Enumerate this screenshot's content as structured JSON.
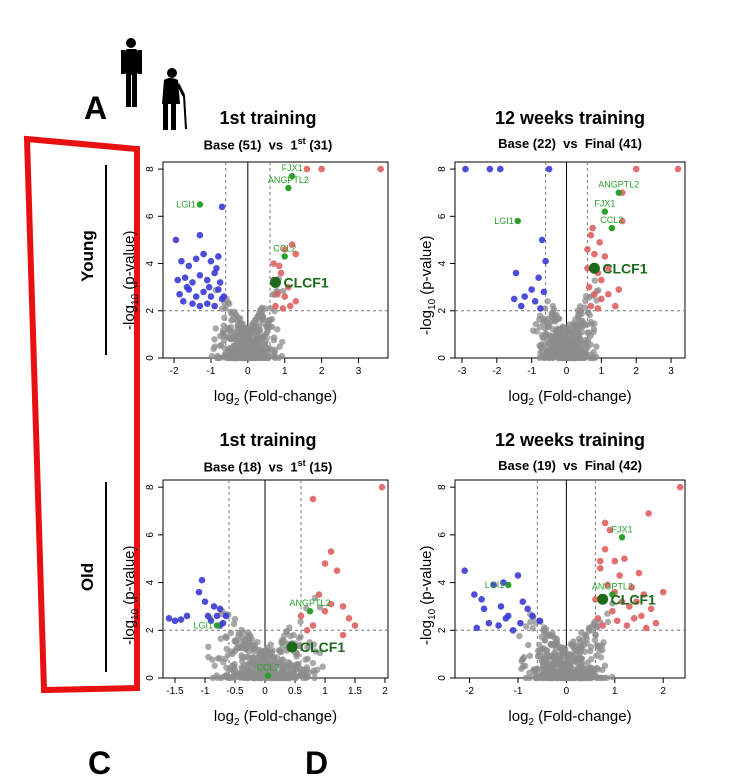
{
  "figure": {
    "panel_label": "A",
    "groups": {
      "young": "Young",
      "old": "Old"
    },
    "bottom_letters": [
      "C",
      "D"
    ],
    "icons": {
      "young": "standing-person-icon",
      "old": "elderly-person-with-cane-icon"
    },
    "colors": {
      "down": "#3a3ad6",
      "up": "#e06060",
      "ns": "#8c8c8c",
      "highlight": "#2aa02a",
      "clcf1": "#1a6a1a",
      "frame": "#e81010"
    }
  },
  "chart_data": [
    {
      "id": "young-1st",
      "type": "scatter",
      "title": "1st training",
      "subtitle": {
        "left": "Base (51)",
        "vs": "vs",
        "right_pre": "1",
        "right_sup": "st",
        "right_post": " (31)"
      },
      "xlabel_pre": "log",
      "xlabel_sub": "2",
      "xlabel_post": " (Fold-change)",
      "ylabel_pre": "-log",
      "ylabel_sub": "10",
      "ylabel_post": " (p-value)",
      "xlim": [
        -2.3,
        3.8
      ],
      "ylim": [
        0,
        8.3
      ],
      "xticks": [
        -2,
        -1,
        0,
        1,
        2,
        3
      ],
      "yticks": [
        0,
        2,
        4,
        6,
        8
      ],
      "vlines": [
        -0.6,
        0.6
      ],
      "hline": 2,
      "down_points": [
        [
          -1.95,
          5.0
        ],
        [
          -1.3,
          5.2
        ],
        [
          -0.7,
          6.4
        ],
        [
          -1.8,
          4.1
        ],
        [
          -1.6,
          3.9
        ],
        [
          -1.4,
          4.2
        ],
        [
          -1.2,
          4.4
        ],
        [
          -1.0,
          4.1
        ],
        [
          -0.8,
          4.3
        ],
        [
          -1.9,
          3.3
        ],
        [
          -1.7,
          3.4
        ],
        [
          -1.5,
          3.2
        ],
        [
          -1.3,
          3.5
        ],
        [
          -1.1,
          3.3
        ],
        [
          -0.9,
          3.6
        ],
        [
          -0.75,
          3.2
        ],
        [
          -1.85,
          2.7
        ],
        [
          -1.6,
          2.9
        ],
        [
          -1.4,
          2.6
        ],
        [
          -1.2,
          2.8
        ],
        [
          -1.0,
          2.6
        ],
        [
          -0.8,
          2.9
        ],
        [
          -0.7,
          2.5
        ],
        [
          -1.75,
          2.4
        ],
        [
          -1.5,
          2.3
        ],
        [
          -1.3,
          2.2
        ],
        [
          -1.1,
          2.3
        ],
        [
          -0.9,
          2.2
        ],
        [
          -0.65,
          2.6
        ],
        [
          -1.65,
          3.0
        ],
        [
          -1.05,
          3.0
        ],
        [
          -0.85,
          3.8
        ]
      ],
      "up_points": [
        [
          0.7,
          3.3
        ],
        [
          0.9,
          3.6
        ],
        [
          1.2,
          4.8
        ],
        [
          0.8,
          2.7
        ],
        [
          1.0,
          2.6
        ],
        [
          1.1,
          3.0
        ],
        [
          1.3,
          2.4
        ],
        [
          0.75,
          2.2
        ],
        [
          0.95,
          2.1
        ],
        [
          1.15,
          2.2
        ],
        [
          0.85,
          3.9
        ],
        [
          1.0,
          4.6
        ],
        [
          1.6,
          8.0
        ],
        [
          2.0,
          8.0
        ],
        [
          3.6,
          8.0
        ],
        [
          1.3,
          4.4
        ],
        [
          0.7,
          4.0
        ]
      ],
      "labels": [
        {
          "name": "FJX1",
          "x": 1.2,
          "y": 7.7,
          "big": false
        },
        {
          "name": "ANGPTL2",
          "x": 1.1,
          "y": 7.2,
          "big": false
        },
        {
          "name": "LGI1",
          "x": -1.3,
          "y": 6.5,
          "big": false
        },
        {
          "name": "CCL2",
          "x": 1.0,
          "y": 4.3,
          "big": false
        },
        {
          "name": "CLCF1",
          "x": 0.75,
          "y": 3.2,
          "big": true
        }
      ],
      "label_texts": {
        "FJX1": "FJX1",
        "ANGPTL2": "ANGPTL2",
        "LGI1": "LGI1",
        "CCL2": "CCL2",
        "CLCF1": "CLCF1"
      }
    },
    {
      "id": "young-12wk",
      "type": "scatter",
      "title": "12 weeks training",
      "subtitle": {
        "left": "Base (22)",
        "vs": "vs",
        "right_pre": "Final (41)",
        "right_sup": "",
        "right_post": ""
      },
      "xlabel_pre": "log",
      "xlabel_sub": "2",
      "xlabel_post": " (Fold-change)",
      "ylabel_pre": "-log",
      "ylabel_sub": "10",
      "ylabel_post": " (p-value)",
      "xlim": [
        -3.2,
        3.4
      ],
      "ylim": [
        0,
        8.3
      ],
      "xticks": [
        -3,
        -2,
        -1,
        0,
        1,
        2,
        3
      ],
      "yticks": [
        0,
        2,
        4,
        6,
        8
      ],
      "vlines": [
        -0.6,
        0.6
      ],
      "hline": 2,
      "down_points": [
        [
          -2.9,
          8.0
        ],
        [
          -2.2,
          8.0
        ],
        [
          -1.9,
          8.0
        ],
        [
          -0.5,
          8.0
        ],
        [
          -0.7,
          5.0
        ],
        [
          -0.6,
          4.1
        ],
        [
          -0.8,
          3.4
        ],
        [
          -1.45,
          3.6
        ],
        [
          -1.2,
          2.6
        ],
        [
          -0.9,
          2.4
        ],
        [
          -1.5,
          2.5
        ],
        [
          -1.0,
          2.9
        ],
        [
          -0.65,
          2.8
        ],
        [
          -1.3,
          2.2
        ],
        [
          -0.75,
          2.1
        ]
      ],
      "up_points": [
        [
          0.6,
          4.6
        ],
        [
          0.7,
          5.2
        ],
        [
          0.8,
          4.4
        ],
        [
          0.9,
          3.6
        ],
        [
          1.0,
          3.3
        ],
        [
          1.1,
          4.3
        ],
        [
          0.65,
          3.0
        ],
        [
          0.8,
          2.7
        ],
        [
          1.0,
          2.5
        ],
        [
          1.2,
          2.7
        ],
        [
          1.4,
          2.2
        ],
        [
          0.7,
          2.2
        ],
        [
          0.9,
          2.1
        ],
        [
          1.2,
          3.8
        ],
        [
          1.5,
          2.9
        ],
        [
          0.6,
          3.8
        ],
        [
          1.6,
          5.8
        ],
        [
          2.0,
          8.0
        ],
        [
          3.2,
          8.0
        ],
        [
          1.6,
          7.0
        ],
        [
          0.75,
          5.5
        ],
        [
          0.95,
          4.9
        ]
      ],
      "labels": [
        {
          "name": "ANGPTL2",
          "x": 1.5,
          "y": 7.0,
          "big": false
        },
        {
          "name": "FJX1",
          "x": 1.1,
          "y": 6.2,
          "big": false
        },
        {
          "name": "LGI1",
          "x": -1.4,
          "y": 5.8,
          "big": false
        },
        {
          "name": "CCL2",
          "x": 1.3,
          "y": 5.5,
          "big": false
        },
        {
          "name": "CLCF1",
          "x": 0.8,
          "y": 3.8,
          "big": true
        }
      ],
      "label_texts": {
        "FJX1": "FJX1",
        "ANGPTL2": "ANGPTL2",
        "LGI1": "LGI1",
        "CCL2": "CCL2",
        "CLCF1": "CLCF1"
      }
    },
    {
      "id": "old-1st",
      "type": "scatter",
      "title": "1st training",
      "subtitle": {
        "left": "Base (18)",
        "vs": "vs",
        "right_pre": "1",
        "right_sup": "st",
        "right_post": " (15)"
      },
      "xlabel_pre": "log",
      "xlabel_sub": "2",
      "xlabel_post": " (Fold-change)",
      "ylabel_pre": "-log",
      "ylabel_sub": "10",
      "ylabel_post": " (p-value)",
      "xlim": [
        -1.7,
        2.05
      ],
      "ylim": [
        0,
        8.3
      ],
      "xticks": [
        -1.5,
        -1.0,
        -0.5,
        0.0,
        0.5,
        1.0,
        1.5,
        2.0
      ],
      "yticks": [
        0,
        2,
        4,
        6,
        8
      ],
      "vlines": [
        -0.6,
        0.6
      ],
      "hline": 2,
      "down_points": [
        [
          -1.6,
          2.5
        ],
        [
          -1.5,
          2.4
        ],
        [
          -1.4,
          2.45
        ],
        [
          -1.3,
          2.6
        ],
        [
          -1.1,
          3.6
        ],
        [
          -1.0,
          3.2
        ],
        [
          -0.9,
          2.4
        ],
        [
          -0.8,
          2.6
        ],
        [
          -0.75,
          2.9
        ],
        [
          -0.7,
          2.3
        ],
        [
          -0.85,
          3.0
        ],
        [
          -0.95,
          2.6
        ],
        [
          -1.05,
          4.1
        ],
        [
          -0.65,
          2.6
        ],
        [
          -0.75,
          2.2
        ]
      ],
      "up_points": [
        [
          0.6,
          2.6
        ],
        [
          0.8,
          2.2
        ],
        [
          0.9,
          3.5
        ],
        [
          1.0,
          2.8
        ],
        [
          1.1,
          3.1
        ],
        [
          1.2,
          4.5
        ],
        [
          1.3,
          3.0
        ],
        [
          1.0,
          4.8
        ],
        [
          1.1,
          5.3
        ],
        [
          0.8,
          7.5
        ],
        [
          1.95,
          8.0
        ],
        [
          1.5,
          2.2
        ],
        [
          1.3,
          1.8
        ],
        [
          0.7,
          2.0
        ],
        [
          1.4,
          2.5
        ]
      ],
      "labels": [
        {
          "name": "ANGPTL2",
          "x": 0.75,
          "y": 2.8,
          "big": false
        },
        {
          "name": "LGI1",
          "x": -0.8,
          "y": 2.2,
          "big": false
        },
        {
          "name": "CLCF1",
          "x": 0.45,
          "y": 1.3,
          "big": true
        },
        {
          "name": "CCL2",
          "x": 0.05,
          "y": 0.1,
          "big": false
        }
      ],
      "label_texts": {
        "ANGPTL2": "ANGPTL2",
        "LGI1": "LGI1",
        "CLCF1": "CLCF1",
        "CCL2": "CCL2"
      }
    },
    {
      "id": "old-12wk",
      "type": "scatter",
      "title": "12 weeks training",
      "subtitle": {
        "left": "Base (19)",
        "vs": "vs",
        "right_pre": "Final (42)",
        "right_sup": "",
        "right_post": ""
      },
      "xlabel_pre": "log",
      "xlabel_sub": "2",
      "xlabel_post": " (Fold-change)",
      "ylabel_pre": "-log",
      "ylabel_sub": "10",
      "ylabel_post": " (p-value)",
      "xlim": [
        -2.3,
        2.45
      ],
      "ylim": [
        0,
        8.3
      ],
      "xticks": [
        -2,
        -1,
        0,
        1,
        2
      ],
      "yticks": [
        0,
        2,
        4,
        6,
        8
      ],
      "vlines": [
        -0.6,
        0.6
      ],
      "hline": 2,
      "down_points": [
        [
          -2.1,
          4.5
        ],
        [
          -1.9,
          3.5
        ],
        [
          -1.7,
          2.9
        ],
        [
          -1.5,
          3.9
        ],
        [
          -1.4,
          2.2
        ],
        [
          -1.3,
          4.0
        ],
        [
          -1.2,
          2.6
        ],
        [
          -1.0,
          4.3
        ],
        [
          -0.9,
          3.2
        ],
        [
          -0.8,
          2.9
        ],
        [
          -1.6,
          2.3
        ],
        [
          -1.1,
          2.0
        ],
        [
          -1.85,
          2.1
        ],
        [
          -1.35,
          3.0
        ],
        [
          -0.7,
          2.6
        ],
        [
          -0.55,
          2.4
        ],
        [
          -0.95,
          2.3
        ],
        [
          -1.75,
          3.3
        ],
        [
          -1.25,
          2.5
        ]
      ],
      "up_points": [
        [
          0.6,
          3.3
        ],
        [
          0.7,
          4.6
        ],
        [
          0.8,
          5.4
        ],
        [
          0.9,
          6.2
        ],
        [
          1.0,
          3.6
        ],
        [
          1.1,
          4.3
        ],
        [
          1.2,
          5.0
        ],
        [
          1.3,
          3.0
        ],
        [
          1.4,
          2.5
        ],
        [
          1.5,
          4.4
        ],
        [
          1.6,
          3.5
        ],
        [
          1.7,
          6.9
        ],
        [
          2.35,
          8.0
        ],
        [
          0.65,
          2.5
        ],
        [
          0.75,
          2.2
        ],
        [
          0.85,
          3.9
        ],
        [
          0.95,
          2.8
        ],
        [
          1.05,
          2.4
        ],
        [
          1.15,
          3.2
        ],
        [
          1.25,
          2.2
        ],
        [
          1.35,
          3.8
        ],
        [
          1.45,
          3.2
        ],
        [
          1.55,
          2.6
        ],
        [
          1.65,
          2.1
        ],
        [
          1.75,
          2.9
        ],
        [
          1.85,
          2.3
        ],
        [
          2.0,
          3.6
        ],
        [
          0.7,
          4.9
        ],
        [
          0.8,
          6.5
        ],
        [
          1.0,
          4.9
        ]
      ],
      "labels": [
        {
          "name": "FJX1",
          "x": 1.15,
          "y": 5.9,
          "big": false
        },
        {
          "name": "LGI1",
          "x": -1.2,
          "y": 3.9,
          "big": false
        },
        {
          "name": "ANGPTL2",
          "x": 0.95,
          "y": 3.5,
          "big": false
        },
        {
          "name": "CLCF1",
          "x": 0.75,
          "y": 3.3,
          "big": true
        }
      ],
      "label_texts": {
        "FJX1": "FJX1",
        "LGI1": "LGI1",
        "ANGPTL2": "ANGPTL2",
        "CLCF1": "CLCF1"
      }
    }
  ]
}
